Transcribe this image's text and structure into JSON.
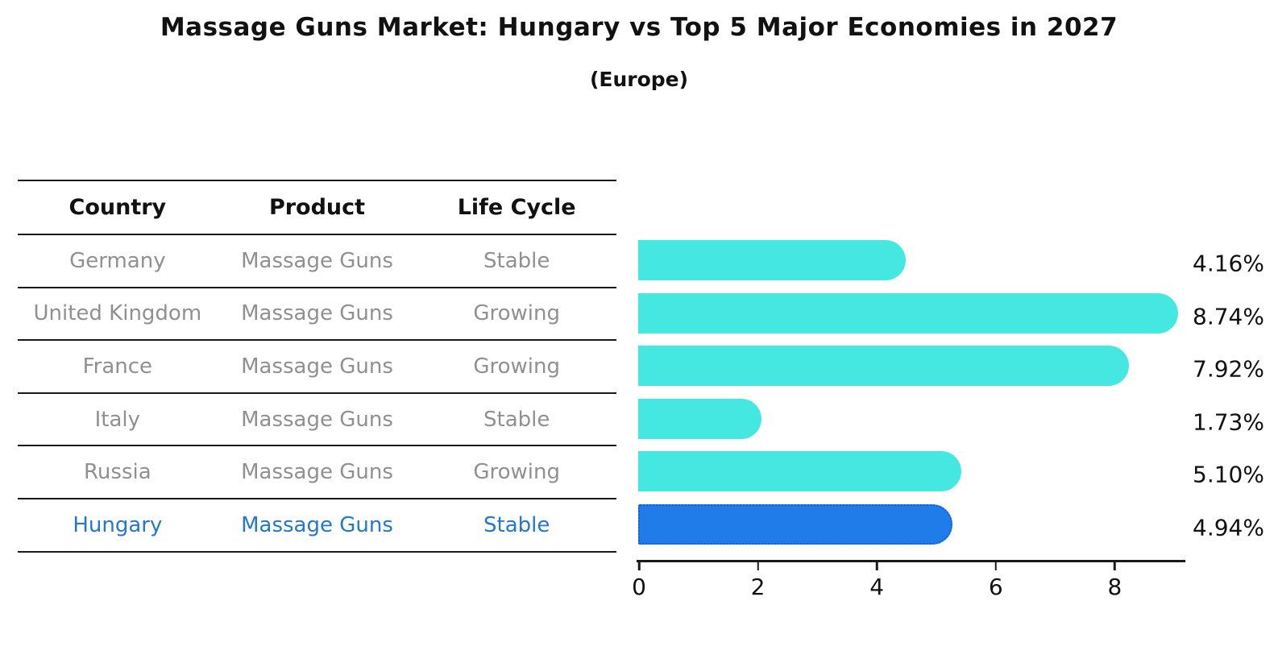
{
  "title": "Massage Guns Market: Hungary vs Top 5 Major Economies in 2027",
  "subtitle": "(Europe)",
  "table": {
    "headers": [
      "Country",
      "Product",
      "Life Cycle"
    ],
    "rows": [
      {
        "country": "Germany",
        "product": "Massage Guns",
        "life_cycle": "Stable",
        "highlighted": false
      },
      {
        "country": "United Kingdom",
        "product": "Massage Guns",
        "life_cycle": "Growing",
        "highlighted": false
      },
      {
        "country": "France",
        "product": "Massage Guns",
        "life_cycle": "Growing",
        "highlighted": false
      },
      {
        "country": "Italy",
        "product": "Massage Guns",
        "life_cycle": "Stable",
        "highlighted": false
      },
      {
        "country": "Russia",
        "product": "Massage Guns",
        "life_cycle": "Growing",
        "highlighted": false
      },
      {
        "country": "Hungary",
        "product": "Massage Guns",
        "life_cycle": "Stable",
        "highlighted": true
      }
    ]
  },
  "chart_data": {
    "type": "bar",
    "orientation": "horizontal",
    "title": "Massage Guns Market: Hungary vs Top 5 Major Economies in 2027",
    "subtitle": "(Europe)",
    "categories": [
      "Germany",
      "United Kingdom",
      "France",
      "Italy",
      "Russia",
      "Hungary"
    ],
    "values": [
      4.16,
      8.74,
      7.92,
      1.73,
      5.1,
      4.94
    ],
    "value_labels": [
      "4.16%",
      "8.74%",
      "7.92%",
      "1.73%",
      "5.10%",
      "4.94%"
    ],
    "x_ticks": [
      0,
      2,
      4,
      6,
      8
    ],
    "xlim": [
      0,
      9.2
    ],
    "grid": false,
    "legend": false,
    "highlight_index": 5,
    "bar_color": "#45E7E1",
    "highlight_color": "#1F7CE8",
    "highlight_border_color": "#1A5FD0"
  },
  "colors": {
    "row_text": "#909090",
    "highlight_text": "#2478CC",
    "header_text": "#111111",
    "axis_line": "#1A1A1A"
  }
}
